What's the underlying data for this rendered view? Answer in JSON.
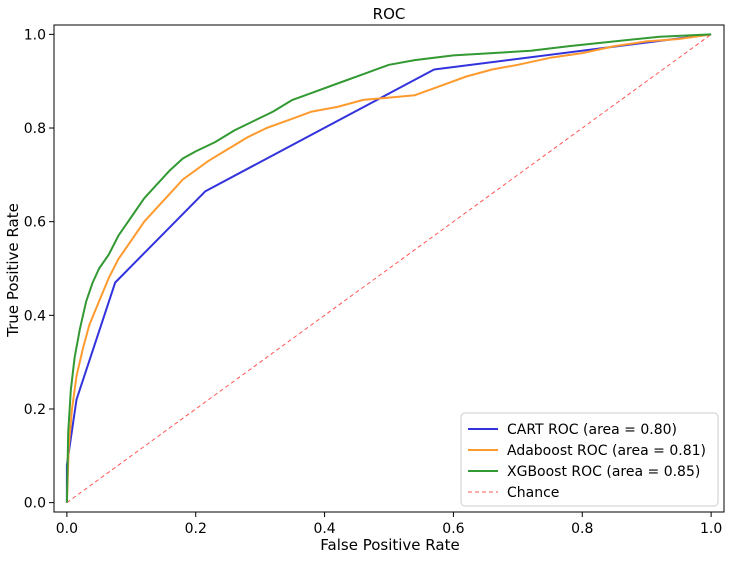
{
  "chart_data": {
    "type": "line",
    "title": "ROC",
    "xlabel": "False Positive Rate",
    "ylabel": "True Positive Rate",
    "xlim": [
      -0.02,
      1.02
    ],
    "ylim": [
      -0.02,
      1.02
    ],
    "x_ticks": [
      0.0,
      0.2,
      0.4,
      0.6,
      0.8,
      1.0
    ],
    "x_tick_labels": [
      "0.0",
      "0.2",
      "0.4",
      "0.6",
      "0.8",
      "1.0"
    ],
    "y_ticks": [
      0.0,
      0.2,
      0.4,
      0.6,
      0.8,
      1.0
    ],
    "y_tick_labels": [
      "0.0",
      "0.2",
      "0.4",
      "0.6",
      "0.8",
      "1.0"
    ],
    "grid": false,
    "legend_position": "lower right",
    "series": [
      {
        "name": "CART ROC (area = 0.80)",
        "color": "#3333dd",
        "style": "solid",
        "x": [
          0.0,
          0.0,
          0.015,
          0.075,
          0.215,
          0.57,
          1.0
        ],
        "y": [
          0.0,
          0.08,
          0.22,
          0.47,
          0.665,
          0.925,
          1.0
        ]
      },
      {
        "name": "Adaboost ROC (area = 0.81)",
        "color": "#ff9a2e",
        "style": "solid",
        "x": [
          0.0,
          0.003,
          0.008,
          0.015,
          0.025,
          0.035,
          0.05,
          0.065,
          0.08,
          0.1,
          0.12,
          0.14,
          0.16,
          0.18,
          0.2,
          0.22,
          0.25,
          0.28,
          0.31,
          0.35,
          0.38,
          0.42,
          0.46,
          0.5,
          0.54,
          0.58,
          0.62,
          0.66,
          0.7,
          0.75,
          0.8,
          0.85,
          0.9,
          0.95,
          1.0
        ],
        "y": [
          0.0,
          0.12,
          0.2,
          0.27,
          0.33,
          0.38,
          0.43,
          0.48,
          0.52,
          0.56,
          0.6,
          0.63,
          0.66,
          0.69,
          0.71,
          0.73,
          0.755,
          0.78,
          0.8,
          0.82,
          0.835,
          0.845,
          0.86,
          0.865,
          0.87,
          0.89,
          0.91,
          0.925,
          0.935,
          0.95,
          0.96,
          0.975,
          0.985,
          0.99,
          1.0
        ]
      },
      {
        "name": "XGBoost ROC (area = 0.85)",
        "color": "#339933",
        "style": "solid",
        "x": [
          0.0,
          0.002,
          0.006,
          0.012,
          0.02,
          0.03,
          0.04,
          0.05,
          0.065,
          0.08,
          0.1,
          0.12,
          0.14,
          0.16,
          0.18,
          0.2,
          0.23,
          0.26,
          0.29,
          0.32,
          0.35,
          0.38,
          0.42,
          0.46,
          0.5,
          0.54,
          0.6,
          0.66,
          0.72,
          0.78,
          0.85,
          0.92,
          0.97,
          1.0
        ],
        "y": [
          0.0,
          0.15,
          0.24,
          0.31,
          0.37,
          0.43,
          0.47,
          0.5,
          0.53,
          0.57,
          0.61,
          0.65,
          0.68,
          0.71,
          0.735,
          0.75,
          0.77,
          0.795,
          0.815,
          0.835,
          0.86,
          0.875,
          0.895,
          0.915,
          0.935,
          0.945,
          0.955,
          0.96,
          0.965,
          0.975,
          0.985,
          0.995,
          0.998,
          1.0
        ]
      },
      {
        "name": "Chance",
        "color": "#ff5555",
        "style": "dashed",
        "x": [
          0.0,
          1.0
        ],
        "y": [
          0.0,
          1.0
        ]
      }
    ]
  }
}
